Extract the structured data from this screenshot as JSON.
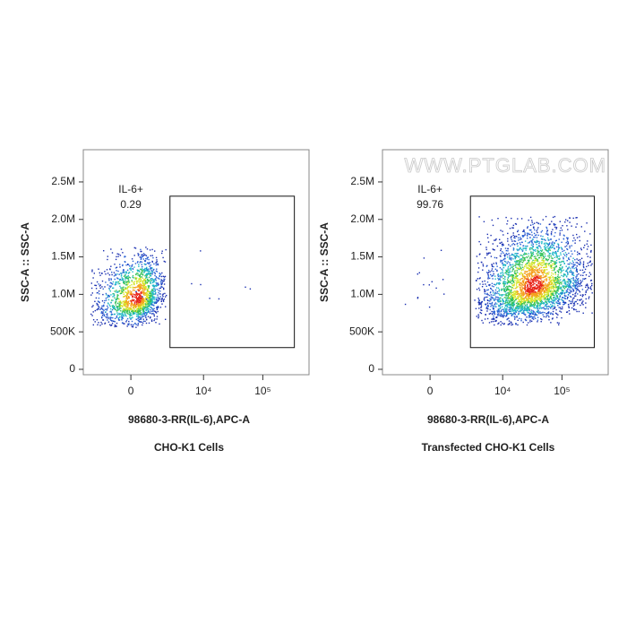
{
  "chart_data": [
    {
      "type": "scatter",
      "title": "CHO-K1 Cells",
      "x_label": "98680-3-RR(IL-6),APC-A",
      "y_label": "SSC-A :: SSC-A",
      "x_scale": "asinh",
      "asinh_cofactor": 1200,
      "xlim": [
        -3700,
        600000
      ],
      "xticks": [
        0,
        {
          "value": 10000,
          "label": "10⁴"
        },
        {
          "value": 100000,
          "label": "10⁵"
        }
      ],
      "ylim": [
        -72000,
        2930000
      ],
      "yticks": [
        0,
        {
          "value": 500000,
          "label": "500K"
        },
        {
          "value": 1000000,
          "label": "1.0M"
        },
        {
          "value": 1500000,
          "label": "1.5M"
        },
        {
          "value": 2000000,
          "label": "2.0M"
        },
        {
          "value": 2500000,
          "label": "2.5M"
        }
      ],
      "gate": {
        "label": "IL-6+",
        "value": 0.29,
        "x": [
          2600,
          340000
        ],
        "y": [
          290000,
          2310000
        ]
      },
      "populations": [
        {
          "count": 1600,
          "x_range": [
            -2800,
            2200
          ],
          "y_range": [
            560000,
            1650000
          ],
          "peak": [
            300,
            950000
          ]
        },
        {
          "count": 14,
          "x_range": [
            -2800,
            200000
          ],
          "y_range": [
            500000,
            1700000
          ],
          "peak": [
            3000,
            1100000
          ]
        }
      ]
    },
    {
      "type": "scatter",
      "title": "Transfected CHO-K1 Cells",
      "x_label": "98680-3-RR(IL-6),APC-A",
      "y_label": "SSC-A :: SSC-A",
      "watermark": "WWW.PTGLAB.COM",
      "x_scale": "asinh",
      "asinh_cofactor": 1200,
      "xlim": [
        -3700,
        600000
      ],
      "xticks": [
        0,
        {
          "value": 10000,
          "label": "10⁴"
        },
        {
          "value": 100000,
          "label": "10⁵"
        }
      ],
      "ylim": [
        -72000,
        2930000
      ],
      "yticks": [
        0,
        {
          "value": 500000,
          "label": "500K"
        },
        {
          "value": 1000000,
          "label": "1.0M"
        },
        {
          "value": 1500000,
          "label": "1.5M"
        },
        {
          "value": 2000000,
          "label": "2.0M"
        },
        {
          "value": 2500000,
          "label": "2.5M"
        }
      ],
      "gate": {
        "label": "IL-6+",
        "value": 99.76,
        "x": [
          2750,
          350000
        ],
        "y": [
          290000,
          2310000
        ]
      },
      "populations": [
        {
          "count": 3200,
          "x_range": [
            3200,
            316000
          ],
          "y_range": [
            600000,
            2050000
          ],
          "peak": [
            32700,
            1100000
          ]
        },
        {
          "count": 14,
          "x_range": [
            -1500,
            3200
          ],
          "y_range": [
            700000,
            1800000
          ],
          "peak": [
            0,
            1200000
          ]
        }
      ]
    }
  ]
}
